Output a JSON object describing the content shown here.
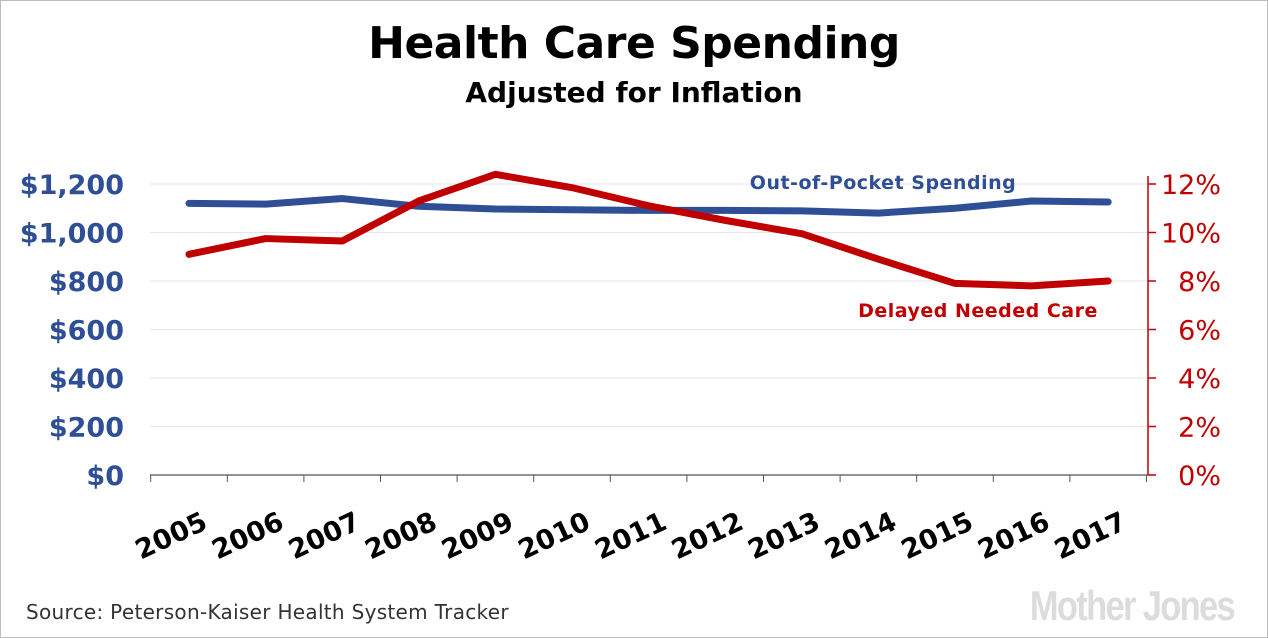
{
  "chart_data": {
    "type": "line",
    "title": "Health Care Spending",
    "subtitle": "Adjusted for Inflation",
    "categories": [
      "2005",
      "2006",
      "2007",
      "2008",
      "2009",
      "2010",
      "2011",
      "2012",
      "2013",
      "2014",
      "2015",
      "2016",
      "2017"
    ],
    "left_axis": {
      "ylim": [
        0,
        1200
      ],
      "ticks": [
        {
          "value": 0,
          "label": "$0"
        },
        {
          "value": 200,
          "label": "$200"
        },
        {
          "value": 400,
          "label": "$400"
        },
        {
          "value": 600,
          "label": "$600"
        },
        {
          "value": 800,
          "label": "$800"
        },
        {
          "value": 1000,
          "label": "$1,000"
        },
        {
          "value": 1200,
          "label": "$1,200"
        }
      ],
      "color": "#2e4f95"
    },
    "right_axis": {
      "ylim": [
        0,
        12
      ],
      "ticks": [
        {
          "value": 0,
          "label": "0%"
        },
        {
          "value": 2,
          "label": "2%"
        },
        {
          "value": 4,
          "label": "4%"
        },
        {
          "value": 6,
          "label": "6%"
        },
        {
          "value": 8,
          "label": "8%"
        },
        {
          "value": 10,
          "label": "10%"
        },
        {
          "value": 12,
          "label": "12%"
        }
      ],
      "color": "#c00000"
    },
    "series": [
      {
        "name": "Out-of-Pocket Spending",
        "axis": "left",
        "color": "#2e4f95",
        "values": [
          1120,
          1117,
          1140,
          1108,
          1097,
          1094,
          1091,
          1091,
          1089,
          1080,
          1100,
          1130,
          1126
        ]
      },
      {
        "name": "Delayed Needed Care",
        "axis": "right",
        "color": "#c00000",
        "values": [
          9.1,
          9.75,
          9.65,
          11.3,
          12.4,
          11.85,
          11.1,
          10.5,
          9.95,
          8.9,
          7.9,
          7.8,
          8.0
        ]
      }
    ],
    "grid": true
  },
  "source": "Source: Peterson-Kaiser Health System Tracker",
  "logo": "Mother Jones"
}
